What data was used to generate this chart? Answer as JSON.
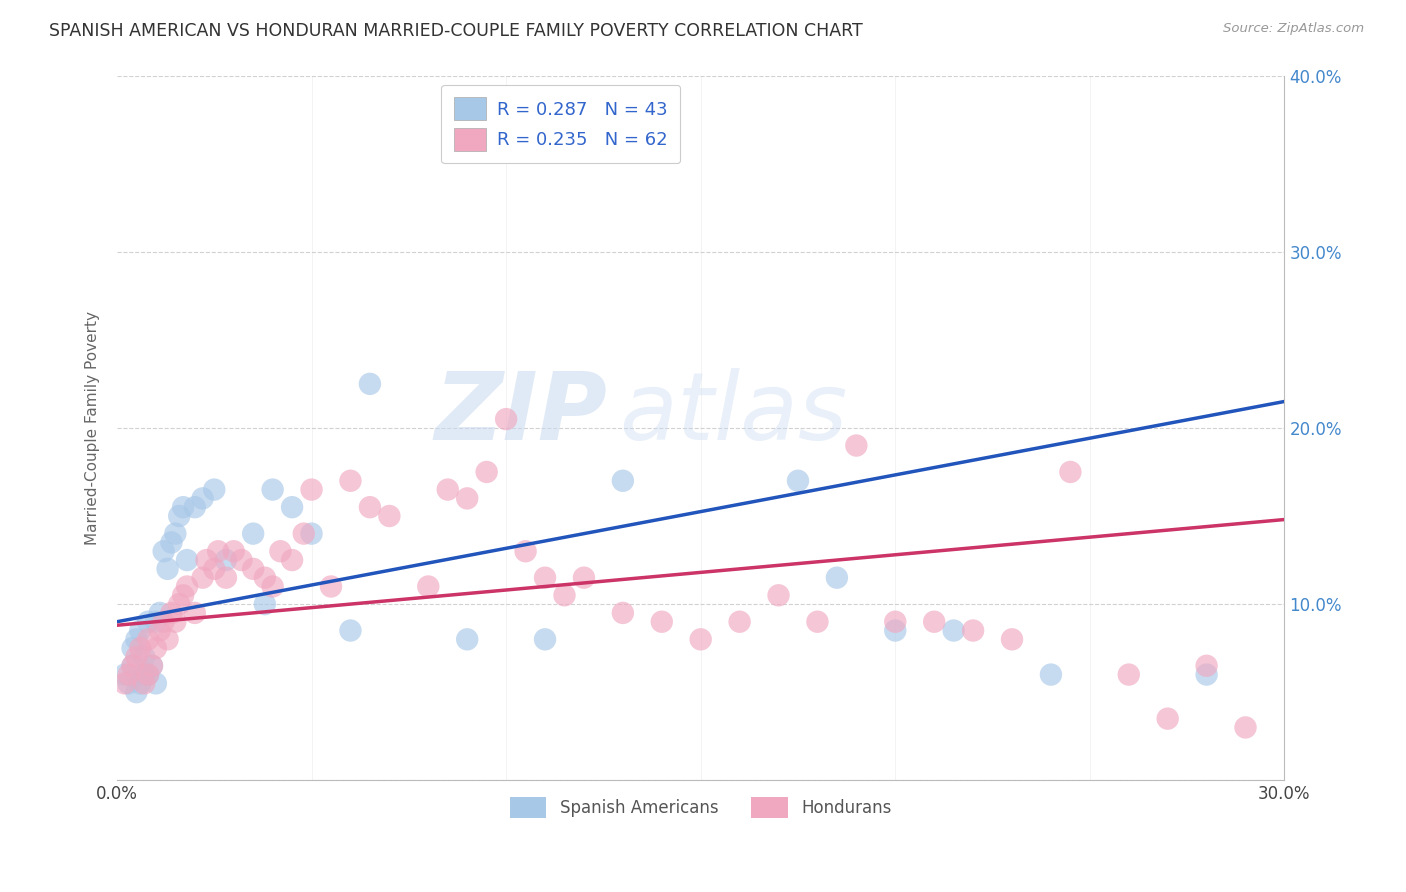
{
  "title": "SPANISH AMERICAN VS HONDURAN MARRIED-COUPLE FAMILY POVERTY CORRELATION CHART",
  "source": "Source: ZipAtlas.com",
  "ylabel": "Married-Couple Family Poverty",
  "xmin": 0.0,
  "xmax": 0.3,
  "ymin": 0.0,
  "ymax": 0.4,
  "blue_R": 0.287,
  "blue_N": 43,
  "pink_R": 0.235,
  "pink_N": 62,
  "blue_color": "#a8c8e8",
  "pink_color": "#f0a8c0",
  "blue_line_color": "#2255bb",
  "pink_line_color": "#cc3366",
  "watermark_zip": "ZIP",
  "watermark_atlas": "atlas",
  "legend_label_blue": "Spanish Americans",
  "legend_label_pink": "Hondurans",
  "blue_line_start_y": 0.09,
  "blue_line_end_y": 0.215,
  "pink_line_start_y": 0.088,
  "pink_line_end_y": 0.148,
  "blue_x": [
    0.002,
    0.003,
    0.004,
    0.004,
    0.005,
    0.005,
    0.006,
    0.006,
    0.007,
    0.007,
    0.008,
    0.008,
    0.009,
    0.01,
    0.01,
    0.011,
    0.012,
    0.013,
    0.014,
    0.015,
    0.016,
    0.017,
    0.018,
    0.02,
    0.022,
    0.025,
    0.028,
    0.035,
    0.038,
    0.04,
    0.045,
    0.05,
    0.06,
    0.065,
    0.09,
    0.11,
    0.13,
    0.175,
    0.185,
    0.2,
    0.215,
    0.24,
    0.28
  ],
  "blue_y": [
    0.06,
    0.055,
    0.065,
    0.075,
    0.05,
    0.08,
    0.055,
    0.085,
    0.06,
    0.07,
    0.06,
    0.09,
    0.065,
    0.055,
    0.09,
    0.095,
    0.13,
    0.12,
    0.135,
    0.14,
    0.15,
    0.155,
    0.125,
    0.155,
    0.16,
    0.165,
    0.125,
    0.14,
    0.1,
    0.165,
    0.155,
    0.14,
    0.085,
    0.225,
    0.08,
    0.08,
    0.17,
    0.17,
    0.115,
    0.085,
    0.085,
    0.06,
    0.06
  ],
  "pink_x": [
    0.002,
    0.003,
    0.004,
    0.005,
    0.006,
    0.007,
    0.008,
    0.008,
    0.009,
    0.01,
    0.011,
    0.012,
    0.013,
    0.014,
    0.015,
    0.016,
    0.017,
    0.018,
    0.02,
    0.022,
    0.023,
    0.025,
    0.026,
    0.028,
    0.03,
    0.032,
    0.035,
    0.038,
    0.04,
    0.042,
    0.045,
    0.048,
    0.05,
    0.055,
    0.06,
    0.065,
    0.07,
    0.08,
    0.085,
    0.09,
    0.095,
    0.1,
    0.105,
    0.11,
    0.115,
    0.12,
    0.13,
    0.14,
    0.15,
    0.16,
    0.17,
    0.18,
    0.19,
    0.2,
    0.21,
    0.22,
    0.23,
    0.245,
    0.26,
    0.27,
    0.28,
    0.29
  ],
  "pink_y": [
    0.055,
    0.06,
    0.065,
    0.07,
    0.075,
    0.055,
    0.06,
    0.08,
    0.065,
    0.075,
    0.085,
    0.09,
    0.08,
    0.095,
    0.09,
    0.1,
    0.105,
    0.11,
    0.095,
    0.115,
    0.125,
    0.12,
    0.13,
    0.115,
    0.13,
    0.125,
    0.12,
    0.115,
    0.11,
    0.13,
    0.125,
    0.14,
    0.165,
    0.11,
    0.17,
    0.155,
    0.15,
    0.11,
    0.165,
    0.16,
    0.175,
    0.205,
    0.13,
    0.115,
    0.105,
    0.115,
    0.095,
    0.09,
    0.08,
    0.09,
    0.105,
    0.09,
    0.19,
    0.09,
    0.09,
    0.085,
    0.08,
    0.175,
    0.06,
    0.035,
    0.065,
    0.03
  ]
}
